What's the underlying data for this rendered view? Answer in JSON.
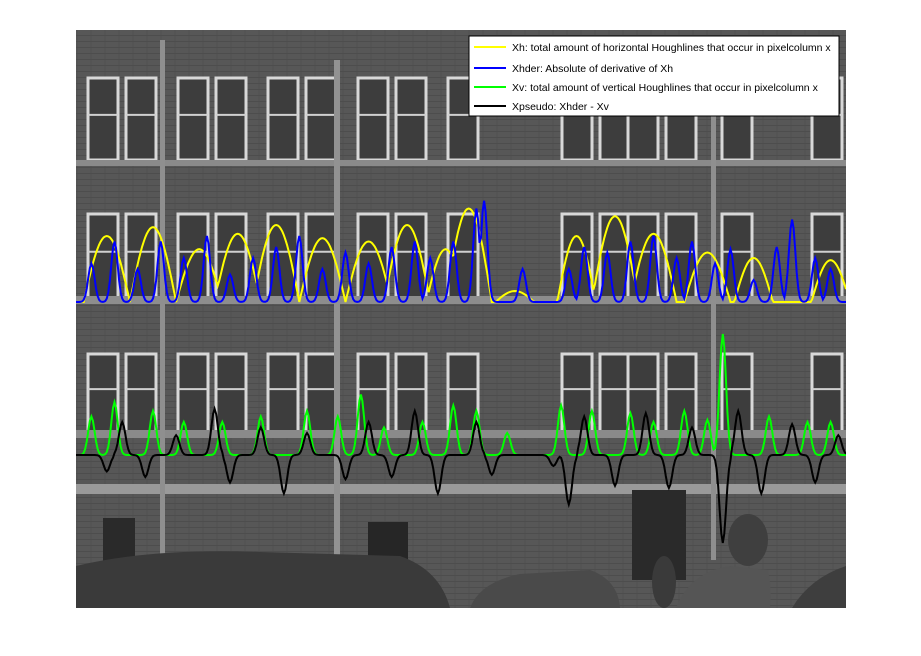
{
  "chart_data": {
    "type": "line",
    "background": "grayscale photograph of a multi-storey brick apartment facade with rows of white-framed windows and parked cars in front",
    "grid": false,
    "axes_visible": false,
    "legend_placement": "top-right",
    "x_range": [
      0,
      100
    ],
    "series": [
      {
        "name": "Xh: total amount of horizontal Houghlines that occur in pixelcolumn x",
        "key": "xh",
        "color": "#ffff00",
        "baseline_band": "upper",
        "bumps": [
          [
            4,
            6,
            60
          ],
          [
            10,
            6,
            68
          ],
          [
            16,
            6,
            48
          ],
          [
            21,
            6,
            62
          ],
          [
            26,
            6,
            70
          ],
          [
            32,
            6,
            58
          ],
          [
            38,
            6,
            55
          ],
          [
            43,
            6,
            70
          ],
          [
            48,
            5,
            48
          ],
          [
            51,
            6,
            85
          ],
          [
            57,
            5,
            10
          ],
          [
            65,
            5,
            60
          ],
          [
            70,
            6,
            78
          ],
          [
            75,
            6,
            62
          ],
          [
            82,
            6,
            45
          ],
          [
            88,
            5,
            40
          ],
          [
            98,
            5,
            38
          ]
        ]
      },
      {
        "name": "Xhder: Absolute of derivative of Xh",
        "key": "xhder",
        "color": "#0000ff",
        "baseline_band": "upper",
        "spikes": [
          [
            2,
            35
          ],
          [
            5,
            55
          ],
          [
            8,
            30
          ],
          [
            11,
            55
          ],
          [
            14,
            40
          ],
          [
            17,
            60
          ],
          [
            20,
            25
          ],
          [
            23,
            40
          ],
          [
            26,
            50
          ],
          [
            29,
            60
          ],
          [
            32,
            30
          ],
          [
            35,
            45
          ],
          [
            38,
            35
          ],
          [
            41,
            50
          ],
          [
            44,
            55
          ],
          [
            46,
            40
          ],
          [
            49,
            55
          ],
          [
            52,
            85
          ],
          [
            53,
            92
          ],
          [
            58,
            30
          ],
          [
            64,
            30
          ],
          [
            66,
            50
          ],
          [
            69,
            45
          ],
          [
            72,
            55
          ],
          [
            75,
            60
          ],
          [
            78,
            40
          ],
          [
            80,
            55
          ],
          [
            83,
            35
          ],
          [
            85,
            48
          ],
          [
            88,
            20
          ],
          [
            91,
            50
          ],
          [
            93,
            75
          ],
          [
            96,
            40
          ],
          [
            98,
            30
          ]
        ]
      },
      {
        "name": "Xv: total amount of vertical Houghlines that occur in pixelcolumn x",
        "key": "xv",
        "color": "#00ff00",
        "baseline_band": "lower",
        "spikes": [
          [
            2,
            35
          ],
          [
            5,
            48
          ],
          [
            10,
            40
          ],
          [
            14,
            30
          ],
          [
            19,
            30
          ],
          [
            24,
            35
          ],
          [
            30,
            40
          ],
          [
            34,
            35
          ],
          [
            37,
            55
          ],
          [
            40,
            25
          ],
          [
            45,
            30
          ],
          [
            49,
            45
          ],
          [
            52,
            40
          ],
          [
            56,
            20
          ],
          [
            63,
            45
          ],
          [
            67,
            40
          ],
          [
            72,
            38
          ],
          [
            75,
            30
          ],
          [
            79,
            40
          ],
          [
            82,
            32
          ],
          [
            84,
            110
          ],
          [
            90,
            35
          ],
          [
            95,
            30
          ],
          [
            98,
            30
          ]
        ]
      },
      {
        "name": "Xpseudo: Xhder - Xv",
        "key": "xpseudo",
        "color": "#000000",
        "baseline_band": "lower",
        "spikes": [
          [
            4,
            -15
          ],
          [
            6,
            30
          ],
          [
            9,
            -20
          ],
          [
            13,
            18
          ],
          [
            18,
            42
          ],
          [
            20,
            -25
          ],
          [
            24,
            25
          ],
          [
            27,
            -35
          ],
          [
            30,
            20
          ],
          [
            35,
            -22
          ],
          [
            38,
            30
          ],
          [
            41,
            -20
          ],
          [
            44,
            40
          ],
          [
            47,
            -35
          ],
          [
            52,
            30
          ],
          [
            54,
            -18
          ],
          [
            62,
            -10
          ],
          [
            64,
            -45
          ],
          [
            66,
            35
          ],
          [
            70,
            -28
          ],
          [
            74,
            38
          ],
          [
            77,
            -30
          ],
          [
            80,
            25
          ],
          [
            84,
            -80
          ],
          [
            86,
            40
          ],
          [
            89,
            -35
          ],
          [
            93,
            28
          ],
          [
            96,
            -25
          ],
          [
            99,
            18
          ]
        ]
      }
    ]
  }
}
